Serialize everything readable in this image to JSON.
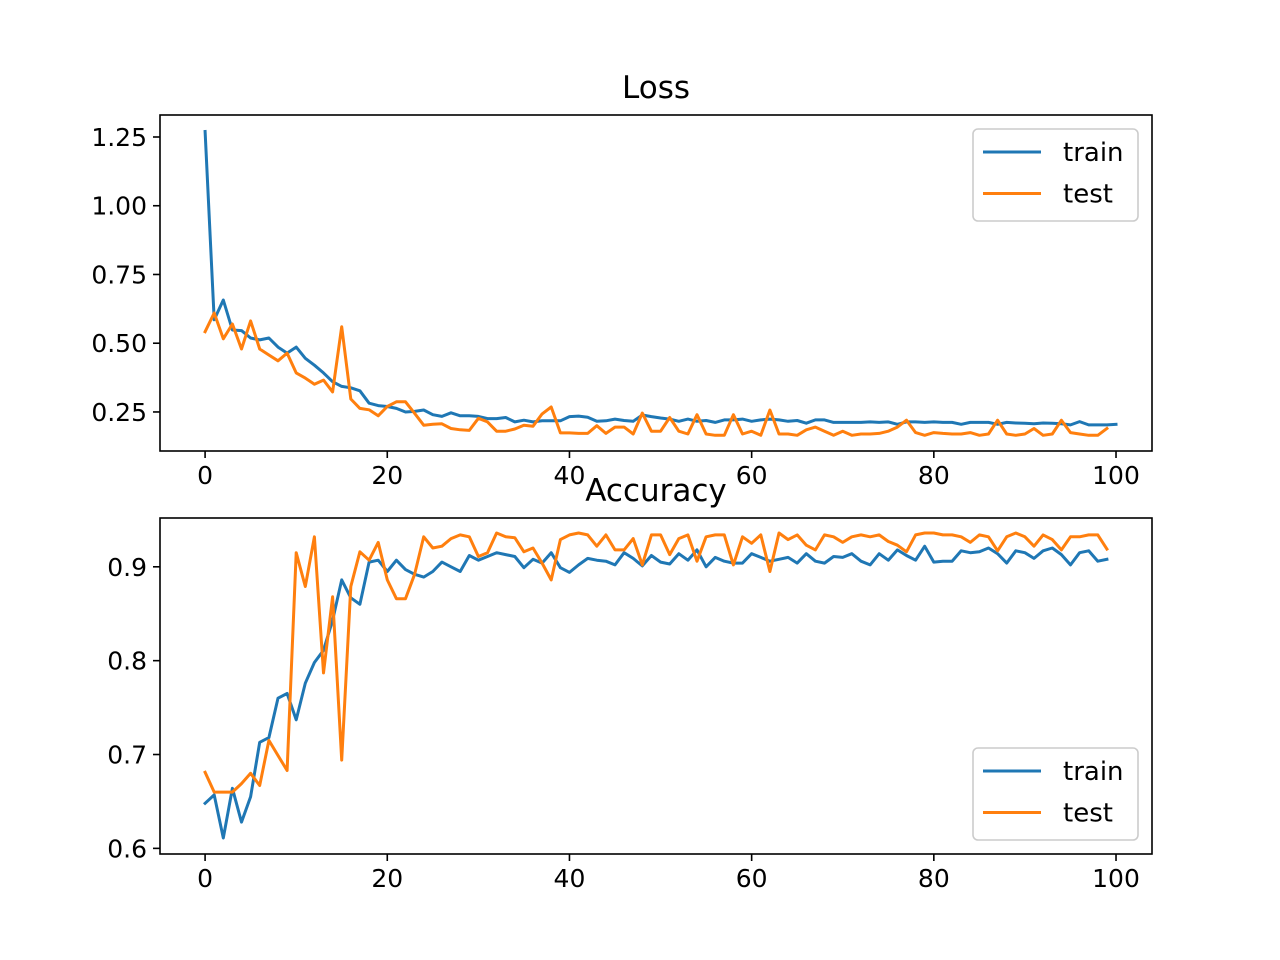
{
  "colors": {
    "train": "#1f77b4",
    "test": "#ff7f0e"
  },
  "chart_data": [
    {
      "type": "line",
      "title": "Loss",
      "xlabel": "",
      "ylabel": "",
      "xlim": [
        -4.95,
        103.95
      ],
      "ylim": [
        0.108,
        1.33
      ],
      "grid": false,
      "legend_placement": "upper right",
      "x_ticks": [
        {
          "v": 0,
          "label": "0"
        },
        {
          "v": 20,
          "label": "20"
        },
        {
          "v": 40,
          "label": "40"
        },
        {
          "v": 60,
          "label": "60"
        },
        {
          "v": 80,
          "label": "80"
        },
        {
          "v": 100,
          "label": "100"
        }
      ],
      "y_ticks": [
        {
          "v": 0.25,
          "label": "0.25"
        },
        {
          "v": 0.5,
          "label": "0.50"
        },
        {
          "v": 0.75,
          "label": "0.75"
        },
        {
          "v": 1.0,
          "label": "1.00"
        },
        {
          "v": 1.25,
          "label": "1.25"
        }
      ],
      "x_start": 0,
      "series": [
        {
          "name": "train",
          "values": [
            1.27,
            0.585,
            0.657,
            0.548,
            0.546,
            0.519,
            0.512,
            0.519,
            0.486,
            0.464,
            0.486,
            0.445,
            0.42,
            0.392,
            0.36,
            0.343,
            0.338,
            0.327,
            0.282,
            0.273,
            0.27,
            0.263,
            0.25,
            0.252,
            0.257,
            0.24,
            0.234,
            0.247,
            0.236,
            0.236,
            0.234,
            0.226,
            0.226,
            0.23,
            0.214,
            0.22,
            0.214,
            0.218,
            0.218,
            0.218,
            0.233,
            0.235,
            0.231,
            0.216,
            0.218,
            0.224,
            0.219,
            0.216,
            0.239,
            0.233,
            0.228,
            0.224,
            0.216,
            0.224,
            0.216,
            0.219,
            0.212,
            0.221,
            0.221,
            0.224,
            0.216,
            0.221,
            0.224,
            0.221,
            0.216,
            0.219,
            0.209,
            0.221,
            0.221,
            0.212,
            0.212,
            0.212,
            0.212,
            0.214,
            0.212,
            0.214,
            0.205,
            0.214,
            0.214,
            0.212,
            0.214,
            0.212,
            0.212,
            0.205,
            0.212,
            0.212,
            0.212,
            0.205,
            0.212,
            0.21,
            0.209,
            0.207,
            0.21,
            0.209,
            0.207,
            0.203,
            0.215,
            0.203,
            0.203,
            0.203,
            0.205
          ]
        },
        {
          "name": "test",
          "values": [
            0.542,
            0.61,
            0.516,
            0.57,
            0.479,
            0.581,
            0.479,
            0.457,
            0.436,
            0.464,
            0.392,
            0.373,
            0.351,
            0.366,
            0.323,
            0.56,
            0.297,
            0.263,
            0.258,
            0.236,
            0.27,
            0.287,
            0.287,
            0.245,
            0.202,
            0.205,
            0.207,
            0.19,
            0.185,
            0.183,
            0.227,
            0.214,
            0.18,
            0.18,
            0.188,
            0.202,
            0.198,
            0.243,
            0.268,
            0.174,
            0.174,
            0.172,
            0.172,
            0.2,
            0.172,
            0.195,
            0.195,
            0.17,
            0.246,
            0.18,
            0.18,
            0.23,
            0.18,
            0.17,
            0.24,
            0.17,
            0.165,
            0.165,
            0.24,
            0.17,
            0.18,
            0.165,
            0.257,
            0.17,
            0.17,
            0.165,
            0.185,
            0.195,
            0.18,
            0.165,
            0.18,
            0.165,
            0.17,
            0.17,
            0.172,
            0.18,
            0.195,
            0.22,
            0.175,
            0.165,
            0.175,
            0.172,
            0.17,
            0.17,
            0.175,
            0.165,
            0.17,
            0.22,
            0.17,
            0.165,
            0.17,
            0.19,
            0.165,
            0.17,
            0.22,
            0.175,
            0.17,
            0.165,
            0.165,
            0.19
          ]
        }
      ]
    },
    {
      "type": "line",
      "title": "Accuracy",
      "xlabel": "",
      "ylabel": "",
      "xlim": [
        -4.95,
        103.95
      ],
      "ylim": [
        0.594,
        0.952
      ],
      "grid": false,
      "legend_placement": "lower right",
      "x_ticks": [
        {
          "v": 0,
          "label": "0"
        },
        {
          "v": 20,
          "label": "20"
        },
        {
          "v": 40,
          "label": "40"
        },
        {
          "v": 60,
          "label": "60"
        },
        {
          "v": 80,
          "label": "80"
        },
        {
          "v": 100,
          "label": "100"
        }
      ],
      "y_ticks": [
        {
          "v": 0.6,
          "label": "0.6"
        },
        {
          "v": 0.7,
          "label": "0.7"
        },
        {
          "v": 0.8,
          "label": "0.8"
        },
        {
          "v": 0.9,
          "label": "0.9"
        }
      ],
      "x_start": 0,
      "series": [
        {
          "name": "train",
          "values": [
            0.648,
            0.657,
            0.611,
            0.664,
            0.628,
            0.655,
            0.713,
            0.718,
            0.76,
            0.765,
            0.737,
            0.776,
            0.798,
            0.811,
            0.843,
            0.886,
            0.867,
            0.86,
            0.905,
            0.907,
            0.895,
            0.907,
            0.897,
            0.892,
            0.889,
            0.895,
            0.905,
            0.9,
            0.895,
            0.912,
            0.907,
            0.911,
            0.915,
            0.913,
            0.911,
            0.899,
            0.908,
            0.904,
            0.915,
            0.899,
            0.894,
            0.902,
            0.909,
            0.907,
            0.906,
            0.902,
            0.915,
            0.909,
            0.901,
            0.912,
            0.905,
            0.903,
            0.914,
            0.907,
            0.918,
            0.9,
            0.91,
            0.906,
            0.904,
            0.904,
            0.914,
            0.91,
            0.906,
            0.908,
            0.91,
            0.904,
            0.914,
            0.906,
            0.904,
            0.911,
            0.91,
            0.914,
            0.906,
            0.902,
            0.914,
            0.907,
            0.918,
            0.912,
            0.907,
            0.922,
            0.905,
            0.906,
            0.906,
            0.917,
            0.915,
            0.916,
            0.92,
            0.914,
            0.904,
            0.917,
            0.915,
            0.909,
            0.917,
            0.92,
            0.913,
            0.902,
            0.915,
            0.917,
            0.906,
            0.908
          ]
        },
        {
          "name": "test",
          "values": [
            0.681,
            0.66,
            0.66,
            0.66,
            0.669,
            0.68,
            0.667,
            0.715,
            0.699,
            0.683,
            0.915,
            0.879,
            0.932,
            0.787,
            0.868,
            0.694,
            0.879,
            0.916,
            0.907,
            0.926,
            0.886,
            0.866,
            0.866,
            0.892,
            0.932,
            0.92,
            0.922,
            0.93,
            0.934,
            0.932,
            0.911,
            0.915,
            0.936,
            0.932,
            0.931,
            0.916,
            0.92,
            0.904,
            0.886,
            0.929,
            0.934,
            0.936,
            0.934,
            0.922,
            0.934,
            0.918,
            0.918,
            0.93,
            0.902,
            0.934,
            0.934,
            0.913,
            0.93,
            0.934,
            0.906,
            0.932,
            0.934,
            0.934,
            0.902,
            0.932,
            0.925,
            0.934,
            0.895,
            0.936,
            0.929,
            0.934,
            0.923,
            0.918,
            0.934,
            0.932,
            0.926,
            0.932,
            0.934,
            0.932,
            0.934,
            0.927,
            0.923,
            0.916,
            0.934,
            0.936,
            0.936,
            0.934,
            0.934,
            0.932,
            0.926,
            0.934,
            0.932,
            0.917,
            0.932,
            0.936,
            0.932,
            0.922,
            0.934,
            0.929,
            0.918,
            0.932,
            0.932,
            0.934,
            0.934,
            0.919
          ]
        }
      ]
    }
  ]
}
